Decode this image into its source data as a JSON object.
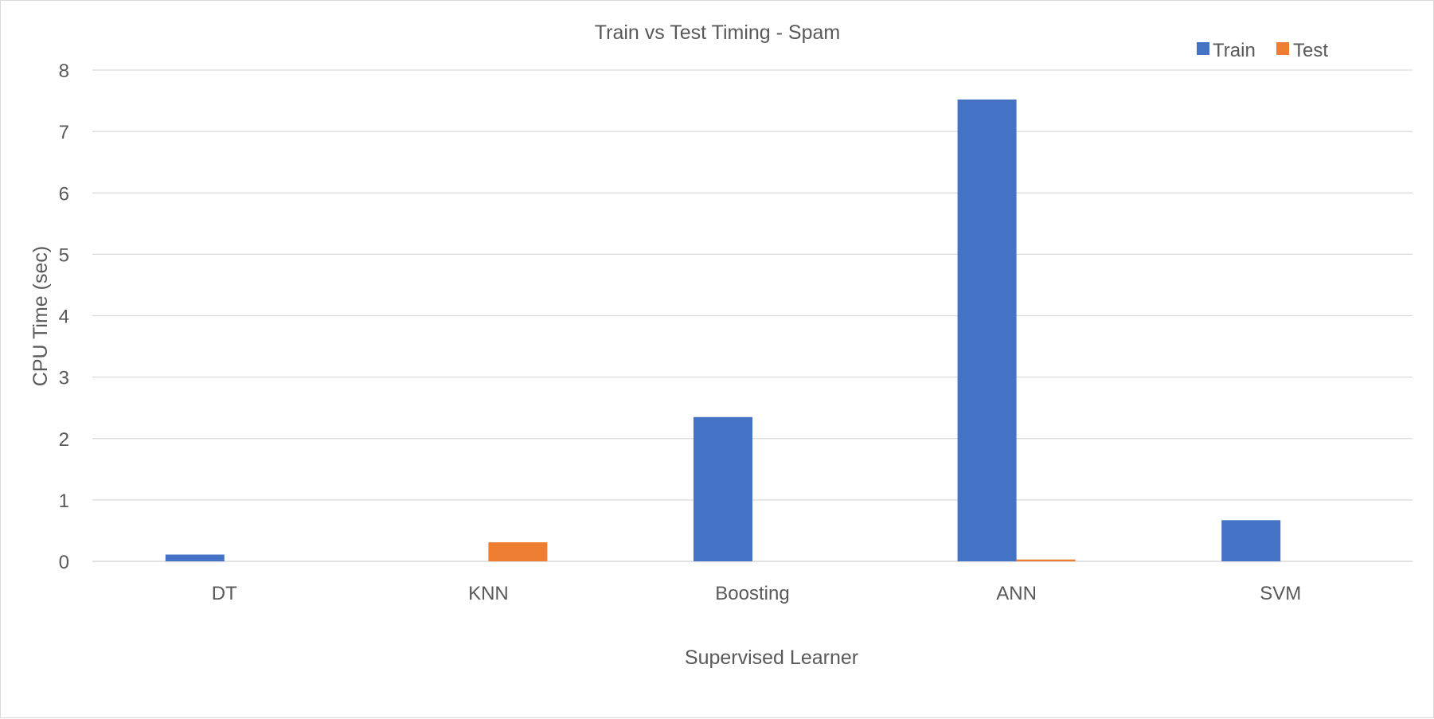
{
  "chart_data": {
    "type": "bar",
    "title": "Train vs Test Timing - Spam",
    "xlabel": "Supervised Learner",
    "ylabel": "CPU Time (sec)",
    "categories": [
      "DT",
      "KNN",
      "Boosting",
      "ANN",
      "SVM"
    ],
    "series": [
      {
        "name": "Train",
        "color": "#4472C4",
        "values": [
          0.11,
          0.0,
          2.35,
          7.52,
          0.67
        ]
      },
      {
        "name": "Test",
        "color": "#ED7D31",
        "values": [
          0.0,
          0.31,
          0.0,
          0.03,
          0.0
        ]
      }
    ],
    "ylim": [
      0,
      8
    ],
    "yticks": [
      "0",
      "1",
      "2",
      "3",
      "4",
      "5",
      "6",
      "7",
      "8"
    ],
    "grid": true,
    "legend_position": "top-right"
  }
}
